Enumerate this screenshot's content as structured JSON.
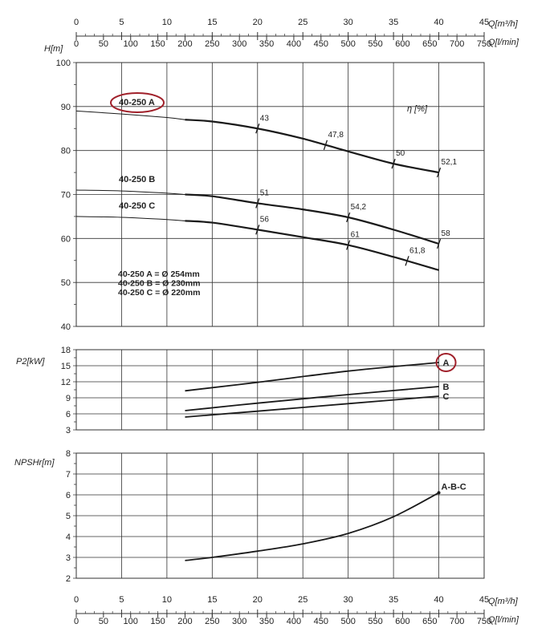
{
  "chart_data": [
    {
      "type": "line",
      "name": "head",
      "ylabel": "H[m]",
      "ylim": [
        40,
        100
      ],
      "yticks": [
        40,
        50,
        60,
        70,
        80,
        90,
        100
      ],
      "xlim": [
        0,
        45
      ],
      "efficiency_axis_label": "η [%]",
      "series": [
        {
          "name": "40-250 A",
          "x": [
            0,
            5,
            10,
            12,
            15,
            20,
            25,
            30,
            35,
            40
          ],
          "y": [
            89.0,
            88.3,
            87.5,
            87.0,
            86.6,
            85.0,
            82.7,
            79.8,
            77.0,
            75.0
          ]
        },
        {
          "name": "40-250 B",
          "x": [
            0,
            5,
            10,
            12,
            15,
            20,
            25,
            30,
            35,
            40
          ],
          "y": [
            71.0,
            70.8,
            70.3,
            70.0,
            69.6,
            68.0,
            66.6,
            64.8,
            62.0,
            58.8
          ]
        },
        {
          "name": "40-250 C",
          "x": [
            0,
            5,
            10,
            12,
            15,
            20,
            25,
            30,
            35,
            40
          ],
          "y": [
            65.0,
            64.8,
            64.3,
            64.0,
            63.6,
            62.0,
            60.3,
            58.5,
            55.8,
            52.8
          ]
        }
      ],
      "efficiency_marks": [
        {
          "series": "40-250 A",
          "x": 20,
          "label": "43"
        },
        {
          "series": "40-250 A",
          "x": 27.5,
          "label": "47,8"
        },
        {
          "series": "40-250 A",
          "x": 35,
          "label": "50"
        },
        {
          "series": "40-250 A",
          "x": 40,
          "label": "52,1"
        },
        {
          "series": "40-250 B",
          "x": 20,
          "label": "51"
        },
        {
          "series": "40-250 B",
          "x": 30,
          "label": "54,2"
        },
        {
          "series": "40-250 B",
          "x": 40,
          "label": "58"
        },
        {
          "series": "40-250 C",
          "x": 20,
          "label": "56"
        },
        {
          "series": "40-250 C",
          "x": 30,
          "label": "61"
        },
        {
          "series": "40-250 C",
          "x": 36.5,
          "label": "61,8"
        }
      ],
      "diameters": [
        "40-250 A = Ø 254mm",
        "40-250 B = Ø 230mm",
        "40-250 C = Ø 220mm"
      ]
    },
    {
      "type": "line",
      "name": "power",
      "ylabel": "P2[kW]",
      "ylim": [
        3,
        18
      ],
      "yticks": [
        3,
        6,
        9,
        12,
        15,
        18
      ],
      "xlim": [
        0,
        45
      ],
      "series": [
        {
          "name": "A",
          "x": [
            12,
            20,
            30,
            40
          ],
          "y": [
            10.3,
            11.9,
            14.0,
            15.6
          ]
        },
        {
          "name": "B",
          "x": [
            12,
            20,
            30,
            40
          ],
          "y": [
            6.6,
            8.0,
            9.6,
            11.1
          ]
        },
        {
          "name": "C",
          "x": [
            12,
            20,
            30,
            40
          ],
          "y": [
            5.4,
            6.5,
            7.9,
            9.3
          ]
        }
      ]
    },
    {
      "type": "line",
      "name": "npsh",
      "ylabel": "NPSHr[m]",
      "ylim": [
        2,
        8
      ],
      "yticks": [
        2,
        3,
        4,
        5,
        6,
        7,
        8
      ],
      "xlim": [
        0,
        45
      ],
      "series": [
        {
          "name": "A-B-C",
          "x": [
            12,
            15,
            20,
            25,
            30,
            35,
            40
          ],
          "y": [
            2.85,
            3.0,
            3.3,
            3.65,
            4.15,
            4.95,
            6.1
          ]
        }
      ]
    }
  ],
  "x_axis": {
    "q_m3h_label": "Q[m³/h]",
    "q_lmin_label": "Q[l/min]",
    "m3h_ticks": [
      0,
      5,
      10,
      15,
      20,
      25,
      30,
      35,
      40,
      45
    ],
    "lmin_ticks": [
      0,
      50,
      100,
      150,
      200,
      250,
      300,
      350,
      400,
      450,
      500,
      550,
      600,
      650,
      700,
      750
    ]
  },
  "highlight_color": "#a0202a",
  "line_color": "#1a1a1a"
}
